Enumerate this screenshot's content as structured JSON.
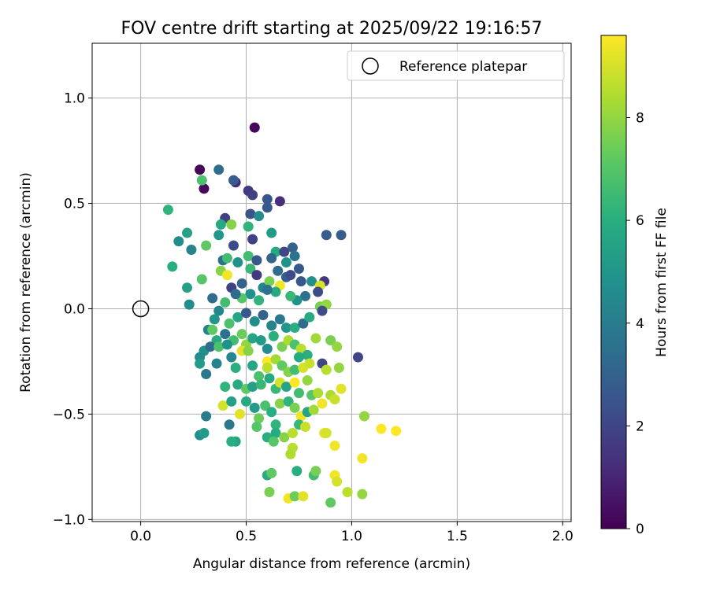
{
  "chart_data": {
    "type": "scatter",
    "title": "FOV centre drift starting at 2025/09/22 19:16:57",
    "xlabel": "Angular distance from reference (arcmin)",
    "ylabel": "Rotation from reference (arcmin)",
    "xlim": [
      -0.23,
      2.04
    ],
    "ylim": [
      -1.01,
      1.26
    ],
    "xticks": [
      0.0,
      0.5,
      1.0,
      1.5,
      2.0
    ],
    "xtick_labels": [
      "0.0",
      "0.5",
      "1.0",
      "1.5",
      "2.0"
    ],
    "yticks": [
      -1.0,
      -0.5,
      0.0,
      0.5,
      1.0
    ],
    "ytick_labels": [
      "−1.0",
      "−0.5",
      "0.0",
      "0.5",
      "1.0"
    ],
    "grid": true,
    "legend": {
      "position": "top-right",
      "entries": [
        "Reference platepar"
      ]
    },
    "reference_point": {
      "x": 0.0,
      "y": 0.0,
      "label": "Reference platepar"
    },
    "colorbar": {
      "label": "Hours from first FF file",
      "min": 0,
      "max": 9.6,
      "ticks": [
        0,
        2,
        4,
        6,
        8
      ],
      "tick_labels": [
        "0",
        "2",
        "4",
        "6",
        "8"
      ]
    },
    "series": [
      {
        "name": "FOV centre drift",
        "points": [
          [
            0.54,
            0.86,
            0.2
          ],
          [
            0.28,
            0.66,
            0.1
          ],
          [
            0.3,
            0.57,
            0.2
          ],
          [
            0.45,
            0.6,
            1.1
          ],
          [
            0.51,
            0.56,
            1.6
          ],
          [
            0.53,
            0.54,
            1.8
          ],
          [
            0.37,
            0.66,
            3.4
          ],
          [
            0.44,
            0.61,
            2.8
          ],
          [
            0.29,
            0.61,
            6.8
          ],
          [
            0.6,
            0.52,
            2.6
          ],
          [
            0.66,
            0.51,
            1.3
          ],
          [
            0.13,
            0.47,
            6.2
          ],
          [
            0.6,
            0.48,
            2.6
          ],
          [
            0.52,
            0.45,
            2.4
          ],
          [
            0.56,
            0.44,
            4.6
          ],
          [
            0.4,
            0.43,
            1.8
          ],
          [
            0.22,
            0.36,
            5.4
          ],
          [
            0.18,
            0.32,
            4.6
          ],
          [
            0.24,
            0.28,
            4.2
          ],
          [
            0.43,
            0.4,
            7.8
          ],
          [
            0.38,
            0.4,
            5.8
          ],
          [
            0.44,
            0.3,
            2.2
          ],
          [
            0.51,
            0.39,
            6.2
          ],
          [
            0.53,
            0.33,
            1.8
          ],
          [
            0.62,
            0.36,
            5.2
          ],
          [
            0.64,
            0.27,
            5.8
          ],
          [
            0.68,
            0.27,
            2.0
          ],
          [
            0.72,
            0.29,
            3.0
          ],
          [
            0.88,
            0.35,
            2.8
          ],
          [
            0.95,
            0.35,
            2.8
          ],
          [
            0.31,
            0.3,
            7.2
          ],
          [
            0.37,
            0.35,
            5.0
          ],
          [
            0.39,
            0.23,
            3.6
          ],
          [
            0.41,
            0.24,
            6.6
          ],
          [
            0.46,
            0.22,
            4.8
          ],
          [
            0.51,
            0.25,
            6.6
          ],
          [
            0.55,
            0.23,
            2.6
          ],
          [
            0.62,
            0.24,
            3.2
          ],
          [
            0.69,
            0.22,
            4.8
          ],
          [
            0.73,
            0.25,
            3.6
          ],
          [
            0.75,
            0.19,
            2.6
          ],
          [
            0.15,
            0.2,
            6.0
          ],
          [
            0.29,
            0.14,
            7.0
          ],
          [
            0.22,
            0.1,
            5.4
          ],
          [
            0.23,
            0.02,
            4.6
          ],
          [
            0.34,
            0.05,
            3.4
          ],
          [
            0.38,
            0.18,
            7.8
          ],
          [
            0.41,
            0.16,
            9.4
          ],
          [
            0.43,
            0.1,
            1.8
          ],
          [
            0.48,
            0.12,
            3.0
          ],
          [
            0.52,
            0.19,
            6.4
          ],
          [
            0.55,
            0.16,
            1.6
          ],
          [
            0.58,
            0.1,
            4.4
          ],
          [
            0.61,
            0.13,
            7.6
          ],
          [
            0.65,
            0.18,
            3.4
          ],
          [
            0.69,
            0.15,
            2.8
          ],
          [
            0.71,
            0.16,
            2.2
          ],
          [
            0.76,
            0.13,
            2.6
          ],
          [
            0.81,
            0.13,
            4.8
          ],
          [
            0.87,
            0.13,
            1.6
          ],
          [
            0.85,
            0.11,
            9.0
          ],
          [
            0.84,
            0.08,
            2.2
          ],
          [
            0.78,
            0.06,
            3.6
          ],
          [
            0.74,
            0.04,
            4.8
          ],
          [
            0.71,
            0.06,
            6.4
          ],
          [
            0.66,
            0.11,
            9.4
          ],
          [
            0.64,
            0.08,
            5.8
          ],
          [
            0.6,
            0.09,
            3.6
          ],
          [
            0.56,
            0.04,
            6.2
          ],
          [
            0.52,
            0.07,
            4.8
          ],
          [
            0.48,
            0.05,
            7.0
          ],
          [
            0.45,
            0.07,
            3.4
          ],
          [
            0.4,
            0.03,
            6.6
          ],
          [
            0.37,
            -0.01,
            4.4
          ],
          [
            0.35,
            -0.05,
            5.0
          ],
          [
            0.42,
            -0.07,
            6.8
          ],
          [
            0.46,
            -0.04,
            5.6
          ],
          [
            0.5,
            -0.02,
            2.6
          ],
          [
            0.54,
            -0.06,
            4.6
          ],
          [
            0.58,
            -0.03,
            3.0
          ],
          [
            0.62,
            -0.08,
            4.2
          ],
          [
            0.66,
            -0.05,
            3.8
          ],
          [
            0.69,
            -0.09,
            5.0
          ],
          [
            0.73,
            -0.09,
            6.0
          ],
          [
            0.77,
            -0.07,
            3.4
          ],
          [
            0.8,
            -0.04,
            5.8
          ],
          [
            0.85,
            0.01,
            7.6
          ],
          [
            0.88,
            0.02,
            8.0
          ],
          [
            0.86,
            -0.01,
            2.2
          ],
          [
            0.32,
            -0.1,
            4.2
          ],
          [
            0.34,
            -0.1,
            7.2
          ],
          [
            0.36,
            -0.15,
            5.8
          ],
          [
            0.4,
            -0.12,
            3.6
          ],
          [
            0.44,
            -0.15,
            6.6
          ],
          [
            0.48,
            -0.12,
            7.4
          ],
          [
            0.5,
            -0.17,
            8.0
          ],
          [
            0.53,
            -0.14,
            5.6
          ],
          [
            0.57,
            -0.15,
            5.2
          ],
          [
            0.6,
            -0.19,
            4.6
          ],
          [
            0.63,
            -0.13,
            6.0
          ],
          [
            0.67,
            -0.18,
            7.6
          ],
          [
            0.7,
            -0.15,
            8.4
          ],
          [
            0.73,
            -0.17,
            6.8
          ],
          [
            0.76,
            -0.19,
            8.6
          ],
          [
            0.79,
            -0.22,
            6.0
          ],
          [
            0.83,
            -0.14,
            8.2
          ],
          [
            0.9,
            -0.15,
            7.6
          ],
          [
            0.93,
            -0.18,
            8.0
          ],
          [
            0.3,
            -0.2,
            4.8
          ],
          [
            0.33,
            -0.18,
            3.4
          ],
          [
            0.37,
            -0.18,
            6.8
          ],
          [
            0.41,
            -0.17,
            4.8
          ],
          [
            0.28,
            -0.23,
            4.6
          ],
          [
            0.28,
            -0.26,
            5.2
          ],
          [
            0.36,
            -0.26,
            4.2
          ],
          [
            0.43,
            -0.23,
            4.4
          ],
          [
            0.45,
            -0.28,
            6.0
          ],
          [
            0.48,
            -0.2,
            9.2
          ],
          [
            0.51,
            -0.2,
            7.8
          ],
          [
            0.53,
            -0.27,
            5.6
          ],
          [
            0.56,
            -0.32,
            6.8
          ],
          [
            0.6,
            -0.25,
            9.6
          ],
          [
            0.6,
            -0.28,
            8.6
          ],
          [
            0.64,
            -0.24,
            8.2
          ],
          [
            0.67,
            -0.27,
            7.2
          ],
          [
            0.7,
            -0.3,
            7.8
          ],
          [
            0.73,
            -0.29,
            6.6
          ],
          [
            0.75,
            -0.23,
            5.8
          ],
          [
            0.77,
            -0.28,
            9.0
          ],
          [
            0.8,
            -0.26,
            8.8
          ],
          [
            0.86,
            -0.26,
            2.0
          ],
          [
            0.88,
            -0.29,
            8.6
          ],
          [
            0.94,
            -0.28,
            8.0
          ],
          [
            1.03,
            -0.23,
            2.0
          ],
          [
            0.31,
            -0.31,
            3.8
          ],
          [
            0.4,
            -0.37,
            6.2
          ],
          [
            0.46,
            -0.36,
            5.8
          ],
          [
            0.5,
            -0.38,
            7.2
          ],
          [
            0.53,
            -0.37,
            5.4
          ],
          [
            0.57,
            -0.36,
            6.4
          ],
          [
            0.61,
            -0.33,
            5.8
          ],
          [
            0.64,
            -0.38,
            6.4
          ],
          [
            0.66,
            -0.35,
            9.0
          ],
          [
            0.69,
            -0.37,
            5.6
          ],
          [
            0.73,
            -0.35,
            9.6
          ],
          [
            0.75,
            -0.4,
            6.6
          ],
          [
            0.79,
            -0.34,
            8.0
          ],
          [
            0.81,
            -0.41,
            7.0
          ],
          [
            0.84,
            -0.4,
            8.4
          ],
          [
            0.86,
            -0.45,
            9.4
          ],
          [
            0.9,
            -0.41,
            8.4
          ],
          [
            0.92,
            -0.43,
            8.8
          ],
          [
            0.95,
            -0.38,
            9.2
          ],
          [
            0.39,
            -0.46,
            9.0
          ],
          [
            0.43,
            -0.44,
            5.4
          ],
          [
            0.47,
            -0.5,
            9.2
          ],
          [
            0.5,
            -0.44,
            5.8
          ],
          [
            0.54,
            -0.47,
            5.2
          ],
          [
            0.56,
            -0.52,
            7.4
          ],
          [
            0.59,
            -0.46,
            6.8
          ],
          [
            0.62,
            -0.49,
            6.0
          ],
          [
            0.66,
            -0.45,
            7.8
          ],
          [
            0.7,
            -0.44,
            6.2
          ],
          [
            0.73,
            -0.47,
            7.6
          ],
          [
            0.76,
            -0.51,
            9.4
          ],
          [
            0.79,
            -0.49,
            5.6
          ],
          [
            0.82,
            -0.48,
            8.2
          ],
          [
            0.31,
            -0.51,
            4.0
          ],
          [
            0.42,
            -0.55,
            3.8
          ],
          [
            0.45,
            -0.63,
            5.6
          ],
          [
            0.55,
            -0.56,
            7.0
          ],
          [
            0.6,
            -0.61,
            6.0
          ],
          [
            0.64,
            -0.55,
            6.2
          ],
          [
            0.64,
            -0.59,
            5.8
          ],
          [
            0.68,
            -0.61,
            7.8
          ],
          [
            0.72,
            -0.59,
            8.6
          ],
          [
            0.75,
            -0.55,
            6.4
          ],
          [
            0.78,
            -0.56,
            8.8
          ],
          [
            0.87,
            -0.59,
            9.2
          ],
          [
            0.88,
            -0.59,
            9.0
          ],
          [
            0.92,
            -0.65,
            9.4
          ],
          [
            1.06,
            -0.51,
            8.0
          ],
          [
            1.14,
            -0.57,
            9.8
          ],
          [
            1.21,
            -0.58,
            9.6
          ],
          [
            0.28,
            -0.6,
            4.6
          ],
          [
            0.3,
            -0.59,
            5.2
          ],
          [
            0.43,
            -0.63,
            6.0
          ],
          [
            0.63,
            -0.63,
            7.0
          ],
          [
            0.72,
            -0.66,
            8.6
          ],
          [
            0.71,
            -0.69,
            8.4
          ],
          [
            0.74,
            -0.77,
            6.0
          ],
          [
            0.6,
            -0.79,
            5.8
          ],
          [
            0.62,
            -0.78,
            7.2
          ],
          [
            0.82,
            -0.79,
            6.6
          ],
          [
            0.83,
            -0.77,
            7.6
          ],
          [
            0.92,
            -0.79,
            9.4
          ],
          [
            0.93,
            -0.82,
            9.0
          ],
          [
            0.98,
            -0.87,
            8.6
          ],
          [
            1.05,
            -0.71,
            9.4
          ],
          [
            1.05,
            -0.88,
            8.0
          ],
          [
            0.61,
            -0.87,
            7.6
          ],
          [
            0.7,
            -0.9,
            9.4
          ],
          [
            0.73,
            -0.89,
            7.4
          ],
          [
            0.77,
            -0.89,
            9.2
          ],
          [
            0.9,
            -0.92,
            7.2
          ]
        ]
      }
    ]
  }
}
